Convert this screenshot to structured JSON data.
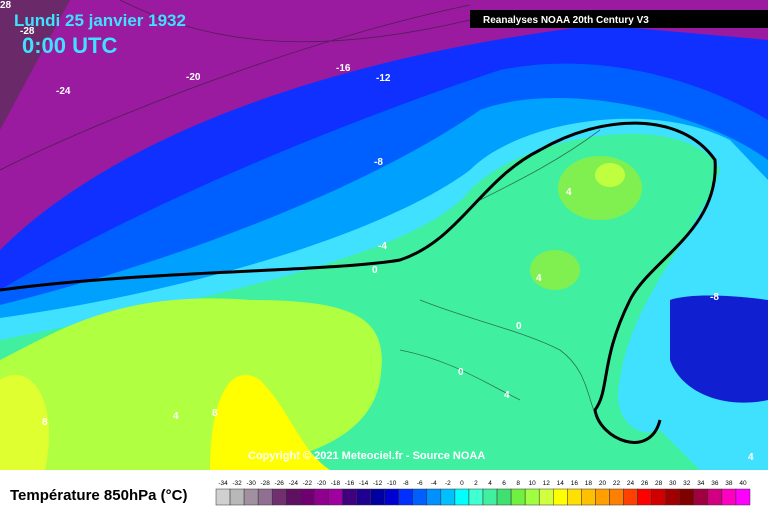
{
  "header": {
    "date": "Lundi 25 janvier 1932",
    "time": "0:00 UTC",
    "source": "Reanalyses NOAA 20th Century V3"
  },
  "copyright": "Copyright © 2021 Meteociel.fr - Source NOAA",
  "contour_labels": [
    "28",
    "-28",
    "-24",
    "-20",
    "-16",
    "-12",
    "-8",
    "-4",
    "0",
    "4",
    "4",
    "0",
    "0",
    "4",
    "-8",
    "4",
    "8",
    "4",
    "8"
  ],
  "legend": {
    "title": "Température 850hPa (°C)",
    "labels": [
      "-34",
      "-32",
      "-30",
      "-28",
      "-26",
      "-24",
      "-22",
      "-20",
      "-18",
      "-16",
      "-14",
      "-12",
      "-10",
      "-8",
      "-6",
      "-4",
      "-2",
      "0",
      "2",
      "4",
      "6",
      "8",
      "10",
      "12",
      "14",
      "16",
      "18",
      "20",
      "22",
      "24",
      "26",
      "28",
      "30",
      "32",
      "34",
      "36",
      "38",
      "40"
    ],
    "colors": [
      "#d0d0d0",
      "#b8b8b8",
      "#a090a0",
      "#907090",
      "#703070",
      "#601060",
      "#700070",
      "#900090",
      "#a000a0",
      "#400080",
      "#200090",
      "#0000a0",
      "#0000d0",
      "#0030ff",
      "#0060ff",
      "#0090ff",
      "#00c0ff",
      "#00ffff",
      "#40ffd0",
      "#40f0a0",
      "#40e070",
      "#70f040",
      "#a0ff40",
      "#d0ff40",
      "#ffff00",
      "#ffe000",
      "#ffc000",
      "#ffa000",
      "#ff8000",
      "#ff4000",
      "#ff0000",
      "#d00000",
      "#a00000",
      "#800000",
      "#a00040",
      "#d00080",
      "#ff00c0",
      "#ff00ff"
    ]
  }
}
